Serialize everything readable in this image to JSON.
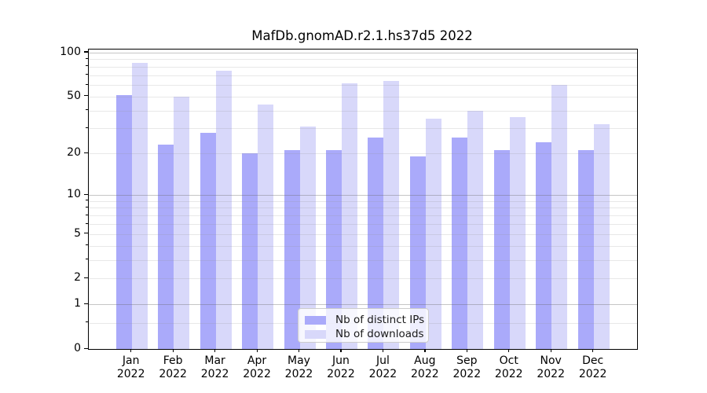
{
  "title": "MafDb.gnomAD.r2.1.hs37d5 2022",
  "chart_data": {
    "type": "bar",
    "title": "MafDb.gnomAD.r2.1.hs37d5 2022",
    "categories": [
      "Jan 2022",
      "Feb 2022",
      "Mar 2022",
      "Apr 2022",
      "May 2022",
      "Jun 2022",
      "Jul 2022",
      "Aug 2022",
      "Sep 2022",
      "Oct 2022",
      "Nov 2022",
      "Dec 2022"
    ],
    "series": [
      {
        "name": "Nb of distinct IPs",
        "color": "#aaaafa",
        "values": [
          51,
          23,
          28,
          20,
          21,
          21,
          26,
          19,
          26,
          21,
          24,
          21
        ]
      },
      {
        "name": "Nb of downloads",
        "color": "#d8d8fa",
        "values": [
          85,
          50,
          75,
          44,
          31,
          62,
          64,
          35,
          40,
          36,
          60,
          32
        ]
      }
    ],
    "xlabel": "",
    "ylabel": "",
    "yscale": "log1p",
    "ylim": [
      0,
      104
    ],
    "yticks": [
      0,
      1,
      2,
      5,
      10,
      20,
      50,
      100
    ],
    "grid_major": [
      1,
      10,
      100
    ],
    "grid_minor": [
      0.5,
      2,
      3,
      4,
      5,
      6,
      7,
      8,
      9,
      20,
      30,
      40,
      50,
      60,
      70,
      80,
      90
    ],
    "grid": "on",
    "legend_position": "lower center"
  },
  "legend": {
    "items": [
      {
        "label": "Nb of distinct IPs"
      },
      {
        "label": "Nb of downloads"
      }
    ]
  },
  "colors": {
    "ips": "#aaaafa",
    "downloads": "#d8d8fa",
    "grid_major": "rgba(105,105,105,0.38)",
    "grid_minor": "rgba(150,150,150,0.22)",
    "spine": "#000000",
    "text": "#000000",
    "legend_border": "#cccccc",
    "legend_bg": "rgba(255,255,255,0.8)"
  }
}
